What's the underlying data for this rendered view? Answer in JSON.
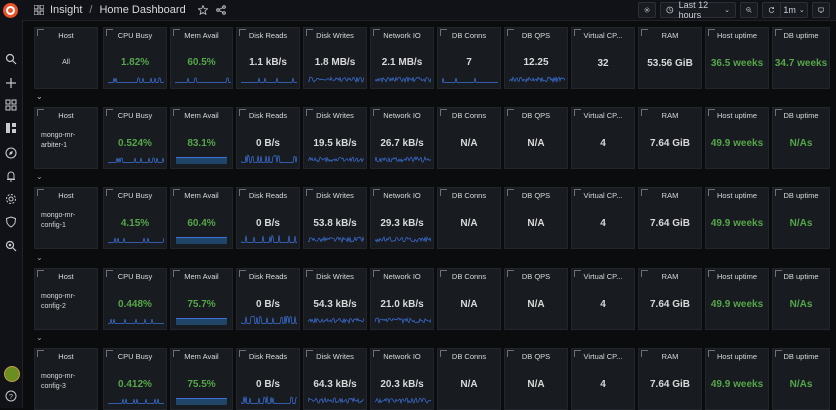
{
  "app": {
    "name": "Insight",
    "dashboard": "Home Dashboard"
  },
  "toolbar": {
    "time_range": "Last 12 hours",
    "refresh": "1m"
  },
  "headers": [
    "Host",
    "CPU Busy",
    "Mem Avail",
    "Disk Reads",
    "Disk Writes",
    "Network IO",
    "DB Conns",
    "DB QPS",
    "Virtual CP...",
    "RAM",
    "Host uptime",
    "DB uptime"
  ],
  "rows": [
    {
      "host": "All",
      "values": [
        "1.82%",
        "60.5%",
        "1.1 kB/s",
        "1.8 MB/s",
        "2.1 MB/s",
        "7",
        "12.25",
        "32",
        "53.56 GiB",
        "36.5 weeks",
        "34.7 weeks"
      ]
    },
    {
      "host": "mongo-mr-arbiter-1",
      "values": [
        "0.524%",
        "83.1%",
        "0 B/s",
        "19.5 kB/s",
        "26.7 kB/s",
        "N/A",
        "N/A",
        "4",
        "7.64 GiB",
        "49.9 weeks",
        "N/As"
      ]
    },
    {
      "host": "mongo-mr-config-1",
      "values": [
        "4.15%",
        "60.4%",
        "0 B/s",
        "53.8 kB/s",
        "29.3 kB/s",
        "N/A",
        "N/A",
        "4",
        "7.64 GiB",
        "49.9 weeks",
        "N/As"
      ]
    },
    {
      "host": "mongo-mr-config-2",
      "values": [
        "0.448%",
        "75.7%",
        "0 B/s",
        "54.3 kB/s",
        "21.0 kB/s",
        "N/A",
        "N/A",
        "4",
        "7.64 GiB",
        "49.9 weeks",
        "N/As"
      ]
    },
    {
      "host": "mongo-mr-config-3",
      "values": [
        "0.412%",
        "75.5%",
        "0 B/s",
        "64.3 kB/s",
        "20.3 kB/s",
        "N/A",
        "N/A",
        "4",
        "7.64 GiB",
        "49.9 weeks",
        "N/As"
      ]
    }
  ],
  "host_lines": [
    [
      "All"
    ],
    [
      "mongo-mr-",
      "arbiter-1"
    ],
    [
      "mongo-mr-",
      "config-1"
    ],
    [
      "mongo-mr-",
      "config-2"
    ],
    [
      "mongo-mr-",
      "config-3"
    ]
  ],
  "colors": {
    "green": "#56a64b",
    "spark": "#3d71d9"
  },
  "icons": [
    "search-icon",
    "plus-icon",
    "dashboards-icon",
    "explore-icon",
    "compass-icon",
    "alert-bell-icon",
    "gear-icon",
    "shield-icon",
    "zoom-icon",
    "help-icon"
  ]
}
